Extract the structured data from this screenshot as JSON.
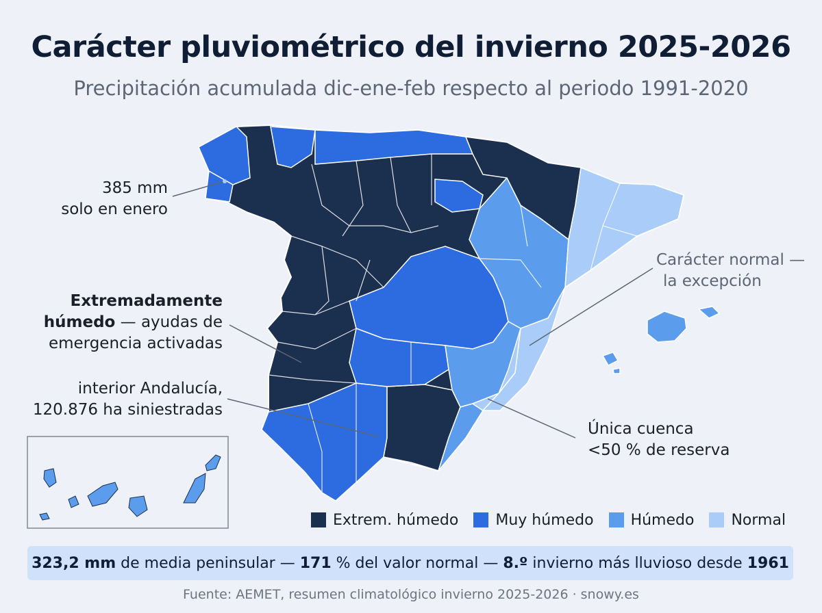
{
  "title": "Carácter pluviométrico del invierno 2025-2026",
  "subtitle": "Precipitación acumulada dic-ene-feb respecto al periodo 1991-2020",
  "colors": {
    "extrem_humedo": "#1b2f4f",
    "muy_humedo": "#2c6be0",
    "humedo": "#5b9cec",
    "normal": "#a9cdf8",
    "background": "#eef2f8"
  },
  "legend": [
    {
      "label": "Extrem. húmedo",
      "color": "#1b2f4f"
    },
    {
      "label": "Muy húmedo",
      "color": "#2c6be0"
    },
    {
      "label": "Húmedo",
      "color": "#5b9cec"
    },
    {
      "label": "Normal",
      "color": "#a9cdf8"
    }
  ],
  "annotations": {
    "galicia": {
      "line1": "385 mm",
      "line2": "solo en enero"
    },
    "extremadura": {
      "bold": "Extremadamente",
      "bold2": "húmedo",
      "rest1": " — ayudas de",
      "rest2": "emergencia activadas"
    },
    "andalucia": {
      "line1": "interior Andalucía,",
      "line2": "120.876 ha siniestradas"
    },
    "normal": {
      "line1": "Carácter normal —",
      "line2": "la excepción"
    },
    "cuenca": {
      "line1": "Única cuenca",
      "line2": "<50 % de reserva"
    }
  },
  "stats": {
    "value1": "323,2 mm",
    "text1": " de media peninsular — ",
    "value2": "171",
    "text2": " % del valor normal — ",
    "value3": "8.º",
    "text3": " invierno más lluvioso desde ",
    "value4": "1961"
  },
  "source": "Fuente: AEMET, resumen climatológico invierno 2025-2026 · snowy.es"
}
